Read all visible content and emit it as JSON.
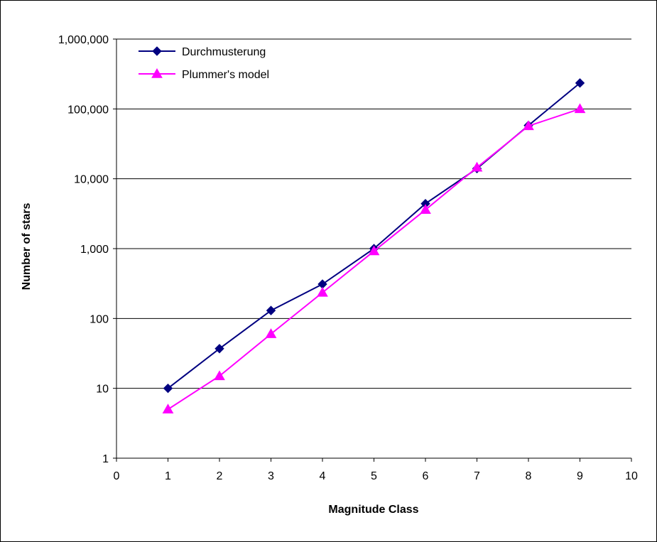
{
  "chart_data": {
    "type": "line",
    "xlabel": "Magnitude Class",
    "ylabel": "Number of stars",
    "xlim": [
      0,
      10
    ],
    "ylim": [
      1,
      1000000
    ],
    "yscale": "log",
    "grid": "horizontal major gridlines",
    "legend_position": "top-left",
    "x_ticks": [
      "0",
      "1",
      "2",
      "3",
      "4",
      "5",
      "6",
      "7",
      "8",
      "9",
      "10"
    ],
    "y_ticks": [
      "1",
      "10",
      "100",
      "1,000",
      "10,000",
      "100,000",
      "1,000,000"
    ],
    "series": [
      {
        "name": "Durchmusterung",
        "color": "#000080",
        "marker": "diamond",
        "x": [
          1,
          2,
          3,
          4,
          5,
          6,
          7,
          8,
          9
        ],
        "y": [
          10,
          37,
          130,
          310,
          1000,
          4400,
          14000,
          58000,
          235000
        ]
      },
      {
        "name": "Plummer's model",
        "color": "#FF00FF",
        "marker": "triangle",
        "x": [
          1,
          2,
          3,
          4,
          5,
          6,
          7,
          8,
          9
        ],
        "y": [
          5,
          15,
          60,
          235,
          920,
          3600,
          14500,
          57000,
          100000
        ]
      }
    ]
  }
}
